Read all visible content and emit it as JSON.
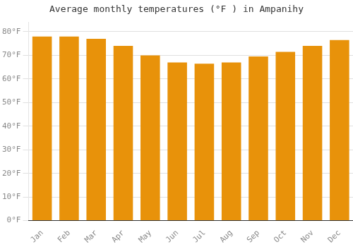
{
  "chart_data": {
    "type": "bar",
    "title": "Average monthly temperatures (°F ) in Ampanihy",
    "categories": [
      "Jan",
      "Feb",
      "Mar",
      "Apr",
      "May",
      "Jun",
      "Jul",
      "Aug",
      "Sep",
      "Oct",
      "Nov",
      "Dec"
    ],
    "values": [
      78,
      78,
      77,
      74,
      70,
      67,
      66.5,
      67,
      69.5,
      71.5,
      74,
      76.5
    ],
    "color": "#E8920A",
    "ylim": [
      0,
      84
    ],
    "yticks": [
      {
        "value": 0,
        "label": "0°F"
      },
      {
        "value": 10,
        "label": "10°F"
      },
      {
        "value": 20,
        "label": "20°F"
      },
      {
        "value": 30,
        "label": "30°F"
      },
      {
        "value": 40,
        "label": "40°F"
      },
      {
        "value": 50,
        "label": "50°F"
      },
      {
        "value": 60,
        "label": "60°F"
      },
      {
        "value": 70,
        "label": "70°F"
      },
      {
        "value": 80,
        "label": "80°F"
      }
    ],
    "grid": true
  }
}
